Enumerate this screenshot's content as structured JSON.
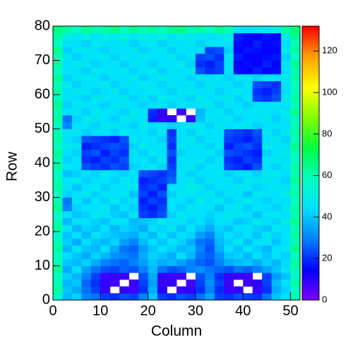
{
  "chart_data": {
    "type": "heatmap",
    "xlabel": "Column",
    "ylabel": "Row",
    "xlim": [
      0,
      52
    ],
    "xticks": [
      0,
      10,
      20,
      30,
      40,
      50
    ],
    "ylim": [
      0,
      80
    ],
    "yticks": [
      0,
      10,
      20,
      30,
      40,
      50,
      60,
      70,
      80
    ],
    "zlim": [
      0,
      132
    ],
    "zticks": [
      0,
      20,
      40,
      60,
      80,
      100,
      120
    ],
    "colormap": [
      "#8000ff",
      "#0000ff",
      "#0080ff",
      "#00e0ff",
      "#00ffc0",
      "#00ff40",
      "#80ff00",
      "#ffff00",
      "#ffa000",
      "#ff0000"
    ],
    "z": [
      [
        55,
        38,
        42,
        30,
        28,
        22,
        20,
        24,
        22,
        30,
        40,
        22,
        20,
        24,
        22,
        28,
        35,
        22,
        20,
        24,
        22,
        20,
        28,
        40,
        45,
        60
      ],
      [
        62,
        40,
        36,
        28,
        22,
        8,
        null,
        9,
        7,
        20,
        36,
        10,
        null,
        8,
        9,
        20,
        30,
        20,
        8,
        9,
        null,
        8,
        20,
        36,
        42,
        58
      ],
      [
        60,
        38,
        40,
        26,
        20,
        9,
        7,
        null,
        8,
        22,
        34,
        8,
        9,
        null,
        7,
        22,
        32,
        22,
        7,
        null,
        8,
        9,
        22,
        38,
        44,
        62
      ],
      [
        58,
        42,
        38,
        30,
        22,
        7,
        9,
        8,
        null,
        24,
        36,
        9,
        7,
        8,
        null,
        24,
        30,
        20,
        9,
        8,
        7,
        null,
        22,
        34,
        40,
        56
      ],
      [
        64,
        36,
        44,
        34,
        28,
        24,
        22,
        26,
        24,
        30,
        38,
        28,
        24,
        26,
        30,
        32,
        28,
        26,
        24,
        28,
        26,
        30,
        34,
        40,
        46,
        60
      ],
      [
        60,
        40,
        38,
        42,
        36,
        30,
        28,
        26,
        30,
        34,
        40,
        36,
        38,
        34,
        30,
        26,
        24,
        30,
        36,
        38,
        40,
        36,
        42,
        38,
        44,
        62
      ],
      [
        58,
        44,
        40,
        36,
        42,
        38,
        32,
        30,
        28,
        36,
        42,
        40,
        36,
        44,
        38,
        28,
        26,
        32,
        40,
        42,
        38,
        44,
        40,
        46,
        42,
        58
      ],
      [
        62,
        38,
        46,
        40,
        38,
        44,
        36,
        28,
        26,
        34,
        40,
        44,
        42,
        38,
        40,
        30,
        24,
        36,
        44,
        40,
        46,
        42,
        38,
        44,
        48,
        64
      ],
      [
        60,
        42,
        36,
        44,
        40,
        38,
        42,
        34,
        30,
        38,
        44,
        40,
        46,
        42,
        36,
        28,
        26,
        38,
        42,
        48,
        40,
        44,
        46,
        40,
        44,
        60
      ],
      [
        56,
        40,
        44,
        38,
        46,
        42,
        40,
        38,
        36,
        42,
        38,
        46,
        40,
        44,
        42,
        34,
        30,
        40,
        46,
        42,
        44,
        40,
        48,
        42,
        46,
        62
      ],
      [
        62,
        46,
        38,
        42,
        40,
        44,
        38,
        42,
        40,
        36,
        44,
        42,
        48,
        40,
        46,
        40,
        36,
        42,
        40,
        44,
        46,
        42,
        40,
        48,
        44,
        60
      ],
      [
        60,
        38,
        44,
        46,
        42,
        40,
        46,
        44,
        38,
        40,
        42,
        48,
        44,
        46,
        42,
        44,
        40,
        46,
        44,
        40,
        42,
        48,
        44,
        42,
        50,
        64
      ],
      [
        58,
        44,
        40,
        42,
        48,
        44,
        42,
        40,
        46,
        22,
        20,
        24,
        42,
        48,
        44,
        46,
        42,
        44,
        48,
        46,
        44,
        40,
        46,
        48,
        44,
        60
      ],
      [
        64,
        30,
        42,
        46,
        44,
        48,
        40,
        44,
        42,
        20,
        18,
        22,
        44,
        42,
        48,
        44,
        46,
        40,
        44,
        48,
        42,
        46,
        44,
        42,
        48,
        62
      ],
      [
        60,
        28,
        46,
        40,
        46,
        42,
        48,
        42,
        44,
        18,
        22,
        20,
        46,
        44,
        42,
        50,
        44,
        48,
        42,
        46,
        48,
        44,
        42,
        46,
        44,
        58
      ],
      [
        58,
        42,
        44,
        48,
        42,
        46,
        44,
        46,
        40,
        22,
        18,
        24,
        42,
        48,
        46,
        44,
        48,
        42,
        46,
        44,
        40,
        48,
        46,
        44,
        50,
        62
      ],
      [
        62,
        46,
        40,
        44,
        48,
        42,
        46,
        44,
        48,
        20,
        22,
        18,
        44,
        46,
        50,
        48,
        42,
        46,
        44,
        48,
        46,
        42,
        44,
        48,
        46,
        60
      ],
      [
        60,
        44,
        48,
        42,
        44,
        46,
        42,
        48,
        44,
        18,
        20,
        22,
        26,
        44,
        46,
        42,
        48,
        44,
        46,
        42,
        48,
        46,
        48,
        44,
        42,
        64
      ],
      [
        58,
        40,
        42,
        46,
        42,
        48,
        44,
        42,
        46,
        24,
        22,
        20,
        24,
        48,
        42,
        46,
        44,
        48,
        42,
        46,
        44,
        42,
        46,
        48,
        44,
        60
      ],
      [
        62,
        46,
        44,
        24,
        22,
        20,
        24,
        22,
        42,
        44,
        46,
        42,
        22,
        44,
        48,
        42,
        46,
        44,
        22,
        20,
        18,
        24,
        44,
        42,
        48,
        62
      ],
      [
        60,
        42,
        46,
        20,
        18,
        22,
        20,
        24,
        44,
        46,
        42,
        48,
        20,
        46,
        44,
        48,
        42,
        46,
        20,
        18,
        22,
        20,
        46,
        48,
        44,
        58
      ],
      [
        64,
        44,
        42,
        22,
        24,
        18,
        22,
        20,
        46,
        42,
        48,
        44,
        24,
        42,
        46,
        44,
        48,
        42,
        24,
        22,
        20,
        18,
        42,
        46,
        48,
        60
      ],
      [
        58,
        48,
        46,
        18,
        20,
        22,
        24,
        22,
        42,
        48,
        44,
        46,
        20,
        48,
        44,
        46,
        42,
        48,
        18,
        22,
        24,
        20,
        48,
        44,
        46,
        64
      ],
      [
        62,
        44,
        42,
        24,
        22,
        20,
        18,
        24,
        48,
        44,
        46,
        42,
        22,
        44,
        48,
        42,
        46,
        44,
        22,
        20,
        18,
        22,
        44,
        48,
        42,
        60
      ],
      [
        60,
        46,
        48,
        42,
        44,
        46,
        42,
        48,
        44,
        46,
        42,
        48,
        20,
        46,
        42,
        48,
        44,
        46,
        24,
        22,
        20,
        24,
        46,
        42,
        48,
        62
      ],
      [
        58,
        30,
        44,
        46,
        42,
        48,
        46,
        44,
        42,
        48,
        44,
        46,
        42,
        44,
        48,
        46,
        42,
        48,
        44,
        46,
        48,
        42,
        44,
        46,
        44,
        60
      ],
      [
        62,
        28,
        42,
        48,
        46,
        44,
        42,
        48,
        46,
        44,
        18,
        8,
        9,
        null,
        8,
        40,
        46,
        44,
        48,
        42,
        46,
        44,
        48,
        42,
        46,
        58
      ],
      [
        60,
        44,
        46,
        42,
        48,
        46,
        44,
        42,
        48,
        46,
        20,
        9,
        null,
        7,
        null,
        38,
        44,
        48,
        42,
        46,
        44,
        48,
        46,
        44,
        48,
        64
      ],
      [
        64,
        42,
        48,
        46,
        44,
        42,
        48,
        46,
        44,
        42,
        44,
        46,
        42,
        48,
        44,
        46,
        48,
        42,
        46,
        44,
        42,
        46,
        44,
        48,
        44,
        60
      ],
      [
        58,
        46,
        44,
        42,
        48,
        46,
        44,
        48,
        42,
        46,
        42,
        48,
        46,
        44,
        42,
        48,
        44,
        46,
        48,
        42,
        46,
        22,
        20,
        24,
        48,
        62
      ],
      [
        62,
        44,
        48,
        46,
        42,
        44,
        48,
        42,
        46,
        44,
        48,
        44,
        42,
        46,
        48,
        44,
        46,
        42,
        44,
        48,
        44,
        20,
        18,
        22,
        44,
        60
      ],
      [
        60,
        48,
        42,
        44,
        46,
        48,
        42,
        46,
        44,
        48,
        46,
        42,
        48,
        44,
        46,
        42,
        48,
        44,
        46,
        42,
        48,
        24,
        22,
        20,
        46,
        58
      ],
      [
        64,
        42,
        46,
        48,
        44,
        42,
        46,
        44,
        48,
        42,
        44,
        48,
        44,
        46,
        42,
        46,
        44,
        48,
        42,
        46,
        44,
        42,
        46,
        44,
        48,
        62
      ],
      [
        58,
        46,
        44,
        42,
        48,
        46,
        44,
        48,
        42,
        46,
        48,
        42,
        46,
        44,
        48,
        24,
        20,
        22,
        46,
        16,
        14,
        18,
        15,
        16,
        44,
        60
      ],
      [
        62,
        44,
        48,
        46,
        42,
        44,
        48,
        42,
        46,
        44,
        42,
        46,
        44,
        48,
        42,
        20,
        18,
        22,
        44,
        14,
        16,
        15,
        18,
        14,
        46,
        64
      ],
      [
        60,
        48,
        42,
        44,
        46,
        48,
        42,
        46,
        44,
        48,
        46,
        44,
        48,
        42,
        46,
        22,
        24,
        20,
        48,
        18,
        15,
        14,
        16,
        17,
        42,
        58
      ],
      [
        64,
        42,
        46,
        48,
        44,
        42,
        46,
        44,
        48,
        42,
        44,
        48,
        42,
        46,
        44,
        44,
        22,
        24,
        42,
        15,
        17,
        16,
        14,
        15,
        48,
        62
      ],
      [
        58,
        46,
        44,
        42,
        48,
        46,
        44,
        48,
        42,
        46,
        48,
        42,
        46,
        44,
        48,
        42,
        46,
        44,
        46,
        16,
        14,
        18,
        15,
        16,
        44,
        60
      ],
      [
        62,
        50,
        48,
        52,
        46,
        50,
        48,
        52,
        46,
        50,
        48,
        52,
        46,
        50,
        48,
        46,
        44,
        48,
        50,
        18,
        16,
        14,
        17,
        15,
        50,
        64
      ],
      [
        66,
        62,
        58,
        64,
        60,
        62,
        66,
        58,
        64,
        60,
        62,
        58,
        64,
        66,
        60,
        62,
        58,
        64,
        60,
        46,
        44,
        48,
        46,
        50,
        62,
        68
      ]
    ]
  }
}
